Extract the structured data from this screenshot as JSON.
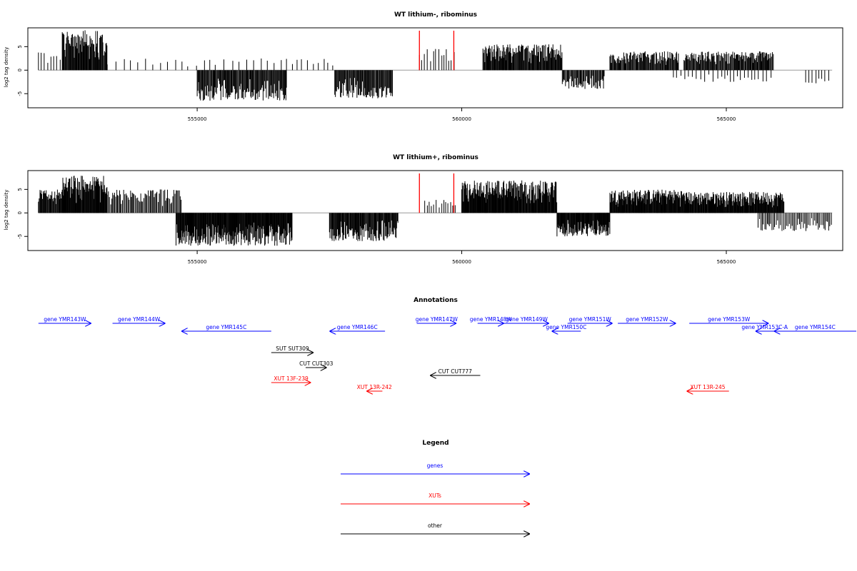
{
  "chart_data": [
    {
      "type": "bar",
      "title": "WT lithium-, ribominus",
      "xlabel": "",
      "ylabel": "log2 tag density",
      "xlim": [
        551800,
        567200
      ],
      "ylim": [
        -8,
        9
      ],
      "xticks": [
        555000,
        560000,
        565000
      ],
      "xtick_labels": [
        "555000",
        "560000",
        "565000"
      ],
      "yticks": [
        -5,
        0,
        5
      ],
      "ytick_labels": [
        "-5",
        "0",
        "5"
      ],
      "baseline": 0,
      "marker_positions": [
        559200,
        559850
      ],
      "marker_color": "#ff0000",
      "segments": [
        {
          "from": 552000,
          "to": 552450,
          "max": 4,
          "min": 0,
          "step": 60
        },
        {
          "from": 552450,
          "to": 553300,
          "max": 8.5,
          "min": 0,
          "step": 12
        },
        {
          "from": 553300,
          "to": 556700,
          "max": 2.5,
          "min": 0,
          "step": 130
        },
        {
          "from": 555000,
          "to": 556700,
          "max": 0,
          "min": -6.5,
          "step": 14
        },
        {
          "from": 556800,
          "to": 557600,
          "max": 2.5,
          "min": 0,
          "step": 90
        },
        {
          "from": 557600,
          "to": 558700,
          "max": 0,
          "min": -6,
          "step": 14
        },
        {
          "from": 559200,
          "to": 559900,
          "max": 5,
          "min": 0,
          "step": 50
        },
        {
          "from": 560400,
          "to": 561900,
          "max": 5.5,
          "min": 0,
          "step": 12
        },
        {
          "from": 561900,
          "to": 562700,
          "max": 0,
          "min": -4,
          "step": 16
        },
        {
          "from": 562800,
          "to": 564100,
          "max": 4,
          "min": 0,
          "step": 14
        },
        {
          "from": 564200,
          "to": 565900,
          "max": 4,
          "min": 0,
          "step": 14
        },
        {
          "from": 564000,
          "to": 565900,
          "max": 0,
          "min": -2.5,
          "step": 70
        },
        {
          "from": 566500,
          "to": 567000,
          "max": 0,
          "min": -3,
          "step": 60
        }
      ]
    },
    {
      "type": "bar",
      "title": "WT lithium+, ribominus",
      "xlabel": "",
      "ylabel": "log2 tag density",
      "xlim": [
        551800,
        567200
      ],
      "ylim": [
        -8,
        9
      ],
      "xticks": [
        555000,
        560000,
        565000
      ],
      "xtick_labels": [
        "555000",
        "560000",
        "565000"
      ],
      "yticks": [
        -5,
        0,
        5
      ],
      "ytick_labels": [
        "-5",
        "0",
        "5"
      ],
      "baseline": 0,
      "marker_positions": [
        559200,
        559850
      ],
      "marker_color": "#ff0000",
      "segments": [
        {
          "from": 552000,
          "to": 552450,
          "max": 5,
          "min": 0,
          "step": 12
        },
        {
          "from": 552450,
          "to": 553300,
          "max": 8,
          "min": 0,
          "step": 10
        },
        {
          "from": 553300,
          "to": 554700,
          "max": 5,
          "min": 0,
          "step": 20
        },
        {
          "from": 554600,
          "to": 556800,
          "max": 0,
          "min": -7,
          "step": 10
        },
        {
          "from": 557500,
          "to": 558800,
          "max": 0,
          "min": -6,
          "step": 12
        },
        {
          "from": 559300,
          "to": 559900,
          "max": 3,
          "min": 0,
          "step": 45
        },
        {
          "from": 560000,
          "to": 561800,
          "max": 7,
          "min": 0,
          "step": 10
        },
        {
          "from": 561800,
          "to": 562800,
          "max": 0,
          "min": -5,
          "step": 10
        },
        {
          "from": 562800,
          "to": 564200,
          "max": 5,
          "min": 0,
          "step": 10
        },
        {
          "from": 564200,
          "to": 566100,
          "max": 4.5,
          "min": 0,
          "step": 10
        },
        {
          "from": 565600,
          "to": 567000,
          "max": 0,
          "min": -4,
          "step": 25
        }
      ]
    }
  ],
  "annotations": {
    "title": "Annotations",
    "features": [
      {
        "label": "gene YMR143W",
        "from": 552000,
        "to": 553000,
        "dir": "right",
        "category": "gene",
        "row": 0
      },
      {
        "label": "gene YMR144W",
        "from": 553400,
        "to": 554400,
        "dir": "right",
        "category": "gene",
        "row": 0
      },
      {
        "label": "gene YMR145C",
        "from": 554700,
        "to": 556400,
        "dir": "left",
        "category": "gene",
        "row": 1
      },
      {
        "label": "gene YMR146C",
        "from": 557500,
        "to": 558550,
        "dir": "left",
        "category": "gene",
        "row": 1
      },
      {
        "label": "gene YMR147W",
        "from": 559150,
        "to": 559900,
        "dir": "right",
        "category": "gene",
        "row": 0
      },
      {
        "label": "gene YMR148W",
        "from": 560300,
        "to": 560800,
        "dir": "right",
        "category": "gene",
        "row": 0
      },
      {
        "label": "gene YMR149W",
        "from": 560800,
        "to": 561650,
        "dir": "right",
        "category": "gene",
        "row": 0
      },
      {
        "label": "gene YMR150C",
        "from": 561700,
        "to": 562250,
        "dir": "left",
        "category": "gene",
        "row": 1
      },
      {
        "label": "gene YMR151W",
        "from": 562000,
        "to": 562850,
        "dir": "right",
        "category": "gene",
        "row": 0
      },
      {
        "label": "gene YMR152W",
        "from": 562950,
        "to": 564050,
        "dir": "right",
        "category": "gene",
        "row": 0
      },
      {
        "label": "gene YMR153W",
        "from": 564300,
        "to": 565800,
        "dir": "right",
        "category": "gene",
        "row": 0
      },
      {
        "label": "gene YMR153C-A",
        "from": 565550,
        "to": 565900,
        "dir": "left",
        "category": "gene",
        "row": 1
      },
      {
        "label": "gene YMR154C",
        "from": 565900,
        "to": 567550,
        "dir": "left",
        "category": "gene",
        "row": 1
      },
      {
        "label": "SUT SUT309",
        "from": 556400,
        "to": 557200,
        "dir": "right",
        "category": "other",
        "row": 2
      },
      {
        "label": "CUT CUT303",
        "from": 557050,
        "to": 557450,
        "dir": "right",
        "category": "other",
        "row": 3
      },
      {
        "label": "CUT CUT777",
        "from": 559400,
        "to": 560350,
        "dir": "left",
        "category": "other",
        "row": 4
      },
      {
        "label": "XUT 13F-239",
        "from": 556400,
        "to": 557150,
        "dir": "right",
        "category": "xut",
        "row": 5
      },
      {
        "label": "XUT 13R-242",
        "from": 558200,
        "to": 558500,
        "dir": "left",
        "category": "xut",
        "row": 6
      },
      {
        "label": "XUT 13R-245",
        "from": 564250,
        "to": 565050,
        "dir": "left",
        "category": "xut",
        "row": 6
      }
    ]
  },
  "legend": {
    "title": "Legend",
    "items": [
      {
        "label": "genes",
        "color": "#0000ff"
      },
      {
        "label": "XUTs",
        "color": "#ff0000"
      },
      {
        "label": "other",
        "color": "#000000"
      }
    ]
  },
  "colors": {
    "gene": "#0000ff",
    "xut": "#ff0000",
    "other": "#000000",
    "bars": "#000000",
    "baseline": "#999999",
    "frame": "#000000"
  }
}
